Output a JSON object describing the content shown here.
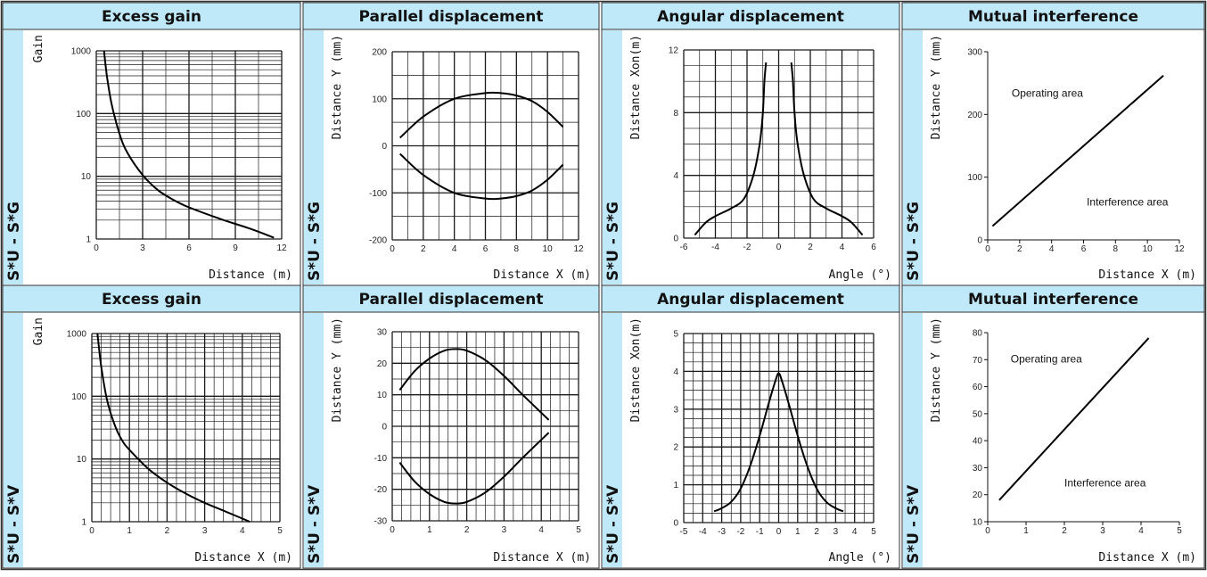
{
  "colors": {
    "header_bg": "#bfe8f9",
    "rowlabel_bg": "#bfe8f9",
    "border": "#333333",
    "grid": "#1a1a1a",
    "curve": "#000000"
  },
  "rows": [
    {
      "label": "S*U - S*G"
    },
    {
      "label": "S*U - S*V"
    }
  ],
  "chart_data": [
    {
      "row": 0,
      "col": 0,
      "type": "line",
      "title": "Excess gain",
      "xlabel": "Distance (m)",
      "ylabel": "Gain",
      "xlim": [
        0,
        12
      ],
      "ylim": [
        1,
        1000
      ],
      "yscale": "log",
      "xticks": [
        0,
        3,
        6,
        9,
        12
      ],
      "xtick_labels": [
        "0",
        "3",
        "6",
        "9",
        "12"
      ],
      "yticks": [
        1,
        10,
        100,
        1000
      ],
      "ytick_labels": [
        "1",
        "10",
        "100",
        "1000"
      ],
      "series": [
        {
          "x": [
            0.5,
            0.7,
            1.0,
            1.5,
            2,
            3,
            4,
            5,
            6,
            8,
            10,
            11.5
          ],
          "y": [
            1000,
            380,
            140,
            48,
            24,
            10.5,
            6,
            4.2,
            3.2,
            2.1,
            1.45,
            1.05
          ]
        }
      ]
    },
    {
      "row": 0,
      "col": 1,
      "type": "line",
      "title": "Parallel displacement",
      "xlabel": "Distance X (m)",
      "ylabel": "Distance Y (mm)",
      "xlim": [
        0,
        12
      ],
      "ylim": [
        -200,
        200
      ],
      "xticks": [
        0,
        2,
        4,
        6,
        8,
        10,
        12
      ],
      "xtick_labels": [
        "0",
        "2",
        "4",
        "6",
        "8",
        "10",
        "12"
      ],
      "yticks": [
        -200,
        -100,
        0,
        100,
        200
      ],
      "ytick_labels": [
        "-200",
        "-100",
        "0",
        "100",
        "200"
      ],
      "series": [
        {
          "x": [
            0.5,
            2,
            4,
            6,
            7,
            8,
            9,
            10,
            11
          ],
          "y": [
            17,
            62,
            100,
            112,
            112,
            107,
            95,
            72,
            40
          ]
        },
        {
          "x": [
            0.5,
            2,
            4,
            6,
            7,
            8,
            9,
            10,
            11
          ],
          "y": [
            -17,
            -62,
            -100,
            -112,
            -112,
            -107,
            -95,
            -72,
            -40
          ]
        }
      ]
    },
    {
      "row": 0,
      "col": 2,
      "type": "line",
      "title": "Angular displacement",
      "xlabel": "Angle (°)",
      "ylabel": "Distance Xon(m)",
      "xlim": [
        -6,
        6
      ],
      "ylim": [
        0,
        12
      ],
      "xticks": [
        -6,
        -4,
        -2,
        0,
        2,
        4,
        6
      ],
      "xtick_labels": [
        "-6",
        "-4",
        "-2",
        "0",
        "2",
        "4",
        "6"
      ],
      "yticks": [
        0,
        4,
        8,
        12
      ],
      "ytick_labels": [
        "0",
        "4",
        "8",
        "12"
      ],
      "series": [
        {
          "x": [
            -5.3,
            -4.6,
            -4,
            -3,
            -2.2,
            -1.6,
            -1.2,
            -1.0,
            -0.9,
            -0.8
          ],
          "y": [
            0.2,
            1.0,
            1.4,
            1.9,
            2.5,
            4.0,
            6.0,
            8.0,
            10.0,
            11.2
          ]
        },
        {
          "x": [
            0.8,
            0.9,
            1.0,
            1.2,
            1.6,
            2.2,
            3,
            4,
            4.6,
            5.3
          ],
          "y": [
            11.2,
            10.0,
            8.0,
            6.0,
            4.0,
            2.5,
            1.9,
            1.4,
            1.0,
            0.2
          ]
        }
      ]
    },
    {
      "row": 0,
      "col": 3,
      "type": "line",
      "title": "Mutual interference",
      "xlabel": "Distance X (m)",
      "ylabel": "Distance Y (mm)",
      "xlim": [
        0,
        12
      ],
      "ylim": [
        0,
        300
      ],
      "xticks": [
        0,
        2,
        4,
        6,
        8,
        10,
        12
      ],
      "xtick_labels": [
        "0",
        "2",
        "4",
        "6",
        "8",
        "10",
        "12"
      ],
      "yticks": [
        0,
        100,
        200,
        300
      ],
      "ytick_labels": [
        "0",
        "100",
        "200",
        "300"
      ],
      "annotations": [
        {
          "text": "Operating area",
          "x": 1.5,
          "y": 228
        },
        {
          "text": "Interference area",
          "x": 6.2,
          "y": 55
        }
      ],
      "series": [
        {
          "x": [
            0.3,
            11
          ],
          "y": [
            22,
            262
          ]
        }
      ]
    },
    {
      "row": 1,
      "col": 0,
      "type": "line",
      "title": "Excess gain",
      "xlabel": "Distance X (m)",
      "ylabel": "Gain",
      "xlim": [
        0,
        5
      ],
      "ylim": [
        1,
        1000
      ],
      "yscale": "log",
      "xticks": [
        0,
        1,
        2,
        3,
        4,
        5
      ],
      "xtick_labels": [
        "0",
        "1",
        "2",
        "3",
        "4",
        "5"
      ],
      "yticks": [
        1,
        10,
        100,
        1000
      ],
      "ytick_labels": [
        "1",
        "10",
        "100",
        "1000"
      ],
      "series": [
        {
          "x": [
            0.15,
            0.25,
            0.4,
            0.6,
            0.8,
            1.0,
            1.5,
            2,
            2.5,
            3,
            3.5,
            4.2
          ],
          "y": [
            1000,
            300,
            90,
            36,
            20,
            14,
            7,
            4.2,
            2.8,
            2.0,
            1.5,
            1.0
          ]
        }
      ]
    },
    {
      "row": 1,
      "col": 1,
      "type": "line",
      "title": "Parallel displacement",
      "xlabel": "Distance X (m)",
      "ylabel": "Distance Y (mm)",
      "xlim": [
        0,
        5
      ],
      "ylim": [
        -30,
        30
      ],
      "xticks": [
        0,
        1,
        2,
        3,
        4,
        5
      ],
      "xtick_labels": [
        "0",
        "1",
        "2",
        "3",
        "4",
        "5"
      ],
      "yticks": [
        -30,
        -20,
        -10,
        0,
        10,
        20,
        30
      ],
      "ytick_labels": [
        "-30",
        "-20",
        "-10",
        "0",
        "10",
        "20",
        "30"
      ],
      "series": [
        {
          "x": [
            0.2,
            0.6,
            1.0,
            1.4,
            1.7,
            2.0,
            2.5,
            3.0,
            3.5,
            4.2
          ],
          "y": [
            11.5,
            17.5,
            21.5,
            24,
            24.5,
            24,
            21,
            16,
            10,
            2
          ]
        },
        {
          "x": [
            0.2,
            0.6,
            1.0,
            1.4,
            1.7,
            2.0,
            2.5,
            3.0,
            3.5,
            4.2
          ],
          "y": [
            -11.5,
            -17.5,
            -21.5,
            -24,
            -24.5,
            -24,
            -21,
            -16,
            -10,
            -2
          ]
        }
      ]
    },
    {
      "row": 1,
      "col": 2,
      "type": "line",
      "title": "Angular displacement",
      "xlabel": "Angle (°)",
      "ylabel": "Distance Xon(m)",
      "xlim": [
        -5,
        5
      ],
      "ylim": [
        0,
        5
      ],
      "xticks": [
        -5,
        -4,
        -3,
        -2,
        -1,
        0,
        1,
        2,
        3,
        4,
        5
      ],
      "xtick_labels": [
        "-5",
        "-4",
        "-3",
        "-2",
        "-1",
        "0",
        "1",
        "2",
        "3",
        "4",
        "5"
      ],
      "yticks": [
        0,
        1,
        2,
        3,
        4,
        5
      ],
      "ytick_labels": [
        "0",
        "1",
        "2",
        "3",
        "4",
        "5"
      ],
      "series": [
        {
          "x": [
            -3.4,
            -3.0,
            -2.5,
            -2.0,
            -1.5,
            -1.0,
            -0.5,
            -0.2,
            0,
            0.2,
            0.5,
            1.0,
            1.5,
            2.0,
            2.5,
            3.0,
            3.4
          ],
          "y": [
            0.3,
            0.38,
            0.55,
            0.9,
            1.5,
            2.3,
            3.2,
            3.7,
            3.95,
            3.7,
            3.2,
            2.3,
            1.5,
            0.9,
            0.55,
            0.38,
            0.3
          ]
        }
      ]
    },
    {
      "row": 1,
      "col": 3,
      "type": "line",
      "title": "Mutual interference",
      "xlabel": "Distance X (m)",
      "ylabel": "Distance Y (mm)",
      "xlim": [
        0,
        5
      ],
      "ylim": [
        10,
        80
      ],
      "xticks": [
        0,
        1,
        2,
        3,
        4,
        5
      ],
      "xtick_labels": [
        "0",
        "1",
        "2",
        "3",
        "4",
        "5"
      ],
      "yticks": [
        10,
        20,
        30,
        40,
        50,
        60,
        70,
        80
      ],
      "ytick_labels": [
        "10",
        "20",
        "30",
        "40",
        "50",
        "60",
        "70",
        "80"
      ],
      "annotations": [
        {
          "text": "Operating area",
          "x": 0.6,
          "y": 69
        },
        {
          "text": "Interference area",
          "x": 2.0,
          "y": 23
        }
      ],
      "series": [
        {
          "x": [
            0.3,
            4.2
          ],
          "y": [
            18,
            78
          ]
        }
      ]
    }
  ]
}
